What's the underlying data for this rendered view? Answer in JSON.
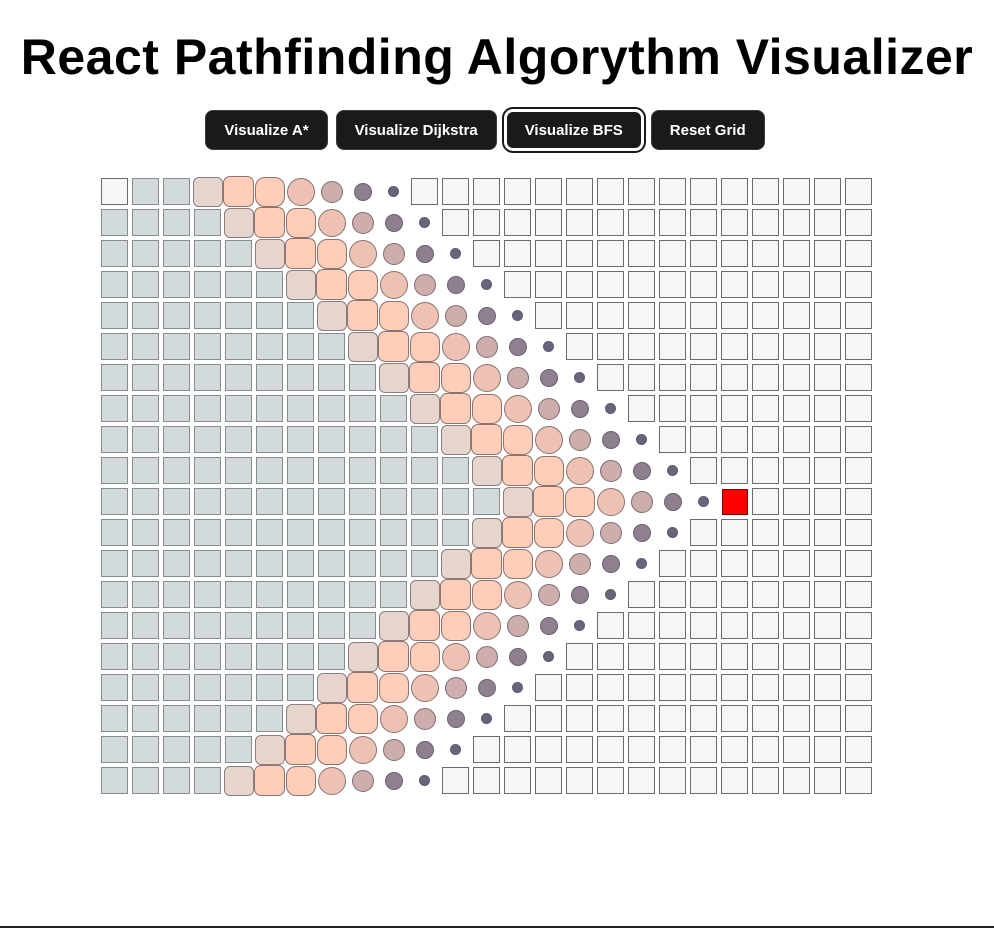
{
  "app": {
    "title": "React Pathfinding Algorythm Visualizer"
  },
  "controls": {
    "astar_label": "Visualize A*",
    "dijkstra_label": "Visualize Dijkstra",
    "bfs_label": "Visualize BFS",
    "reset_label": "Reset Grid",
    "active": "bfs"
  },
  "grid": {
    "rows": 20,
    "cols": 25,
    "start": [
      0,
      0
    ],
    "target": [
      10,
      20
    ],
    "algorithm_state": "BFS frontier expanding",
    "colors": {
      "empty": "#f6f6f6",
      "visited": "#d3dadb",
      "frontier": "#ffcdb8",
      "frontier_edge": "#8f7b9b",
      "target": "#ff0000"
    }
  }
}
